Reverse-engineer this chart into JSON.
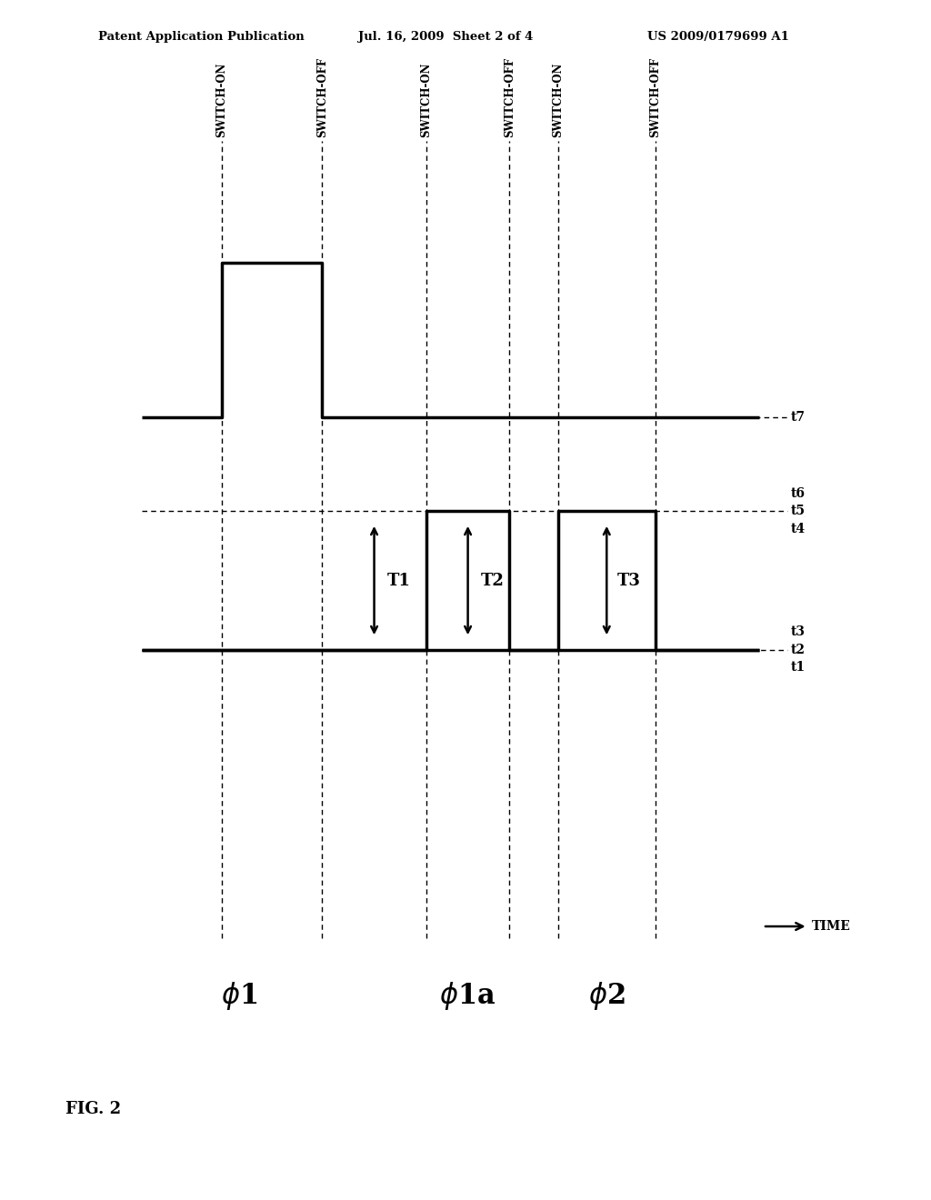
{
  "bg_color": "#ffffff",
  "header_left": "Patent Application Publication",
  "header_mid": "Jul. 16, 2009  Sheet 2 of 4",
  "header_right": "US 2009/0179699 A1",
  "fig_label": "FIG. 2",
  "time_label": "TIME",
  "sw_on_label": "SWITCH-ON",
  "sw_off_label": "SWITCH-OFF",
  "phi1_label": "φ1",
  "phi1a_label": "φ1a",
  "phi2_label": "φ2",
  "T_labels": [
    "T1",
    "T2",
    "T3"
  ],
  "t_labels": [
    "t1",
    "t2",
    "t3",
    "t4",
    "t5",
    "t6",
    "t7"
  ],
  "x_start": 0.2,
  "x_end": 9.1,
  "x_on1": 1.35,
  "x_off1": 2.8,
  "x_on2": 4.3,
  "x_off2": 5.5,
  "x_on3": 6.2,
  "x_off3": 7.6,
  "y1_high": 9.2,
  "y1_low": 7.5,
  "y1a_high": 6.3,
  "y1a_low": 4.6,
  "y2_high": 6.3,
  "y2_low": 4.6,
  "lw_main": 2.5,
  "lw_dash": 1.0,
  "xlim_left": -0.3,
  "xlim_right": 10.2,
  "ylim_bottom": 3.2,
  "ylim_top": 11.5
}
